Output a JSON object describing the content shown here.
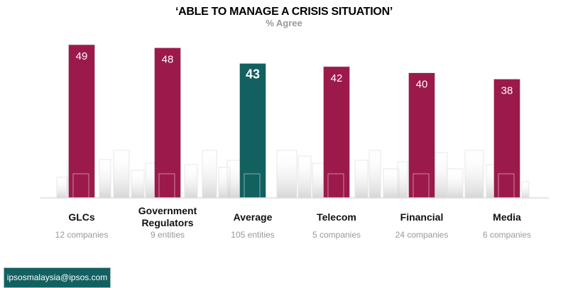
{
  "chart_data": {
    "type": "bar",
    "title": "‘ABLE TO MANAGE A CRISIS SITUATION’",
    "subtitle": "% Agree",
    "categories": [
      "GLCs",
      "Government Regulators",
      "Average",
      "Telecom",
      "Financial",
      "Media"
    ],
    "category_lines": [
      [
        "GLCs"
      ],
      [
        "Government",
        "Regulators"
      ],
      [
        "Average"
      ],
      [
        "Telecom"
      ],
      [
        "Financial"
      ],
      [
        "Media"
      ]
    ],
    "sublabels": [
      "12 companies",
      "9 entities",
      "105 entities",
      "5 companies",
      "24 companies",
      "6 companies"
    ],
    "values": [
      49,
      48,
      43,
      42,
      40,
      38
    ],
    "highlight_index": 2,
    "ylim": [
      0,
      49
    ],
    "colors": {
      "bar": "#9b1a4b",
      "highlight": "#136060"
    }
  },
  "footer": {
    "email": "ipsosmalaysia@ipsos.com"
  }
}
